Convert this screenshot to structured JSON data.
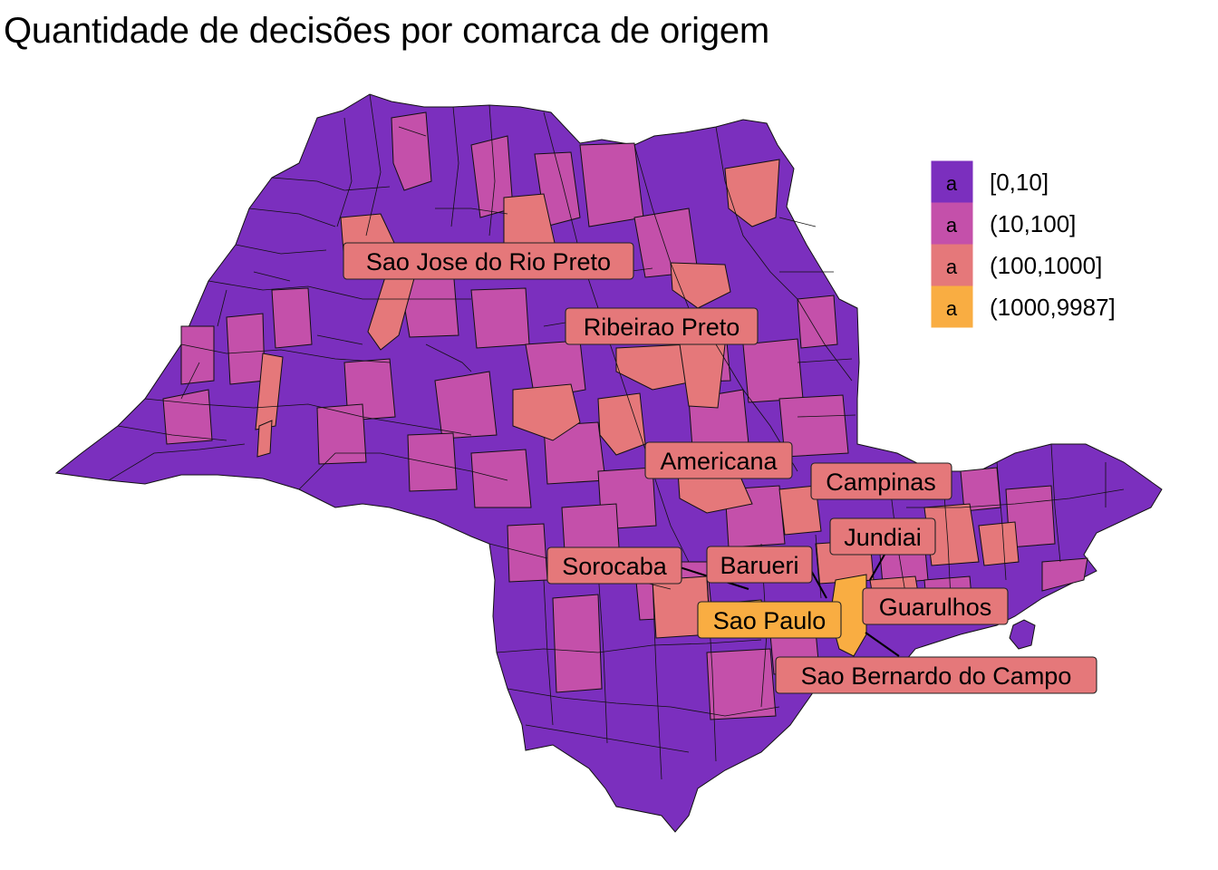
{
  "title": "Quantidade de decisões por comarca de origem",
  "legend": {
    "key_glyph": "a",
    "items": [
      {
        "label": "[0,10]",
        "color": "#7b2fbe"
      },
      {
        "label": "(10,100]",
        "color": "#c450aa"
      },
      {
        "label": "(100,1000]",
        "color": "#e5787a"
      },
      {
        "label": "(1000,9987]",
        "color": "#f9ad42"
      }
    ]
  },
  "labels": [
    {
      "name": "Sao Jose do Rio Preto",
      "category": 2
    },
    {
      "name": "Ribeirao Preto",
      "category": 2
    },
    {
      "name": "Americana",
      "category": 2
    },
    {
      "name": "Campinas",
      "category": 2
    },
    {
      "name": "Jundiai",
      "category": 2
    },
    {
      "name": "Sorocaba",
      "category": 2
    },
    {
      "name": "Barueri",
      "category": 2
    },
    {
      "name": "Sao Paulo",
      "category": 3
    },
    {
      "name": "Guarulhos",
      "category": 2
    },
    {
      "name": "Sao Bernardo do Campo",
      "category": 2
    }
  ]
}
